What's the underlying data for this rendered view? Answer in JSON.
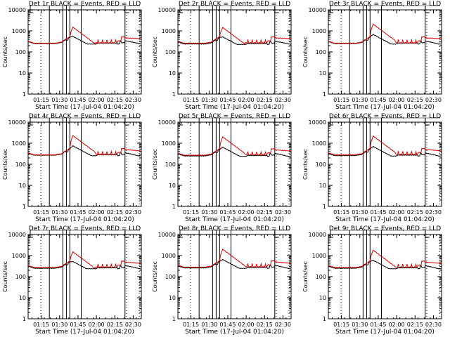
{
  "chart_data": {
    "type": "line",
    "layout": "3x3 grid",
    "y_scale": "log",
    "ylim": [
      1,
      10000
    ],
    "yticks": [
      "1",
      "10",
      "100",
      "1000",
      "10000"
    ],
    "ylabel": "Counts/sec",
    "xlabel": "Start Time (17-Jul-04 01:04:20)",
    "xlim_minutes_from_start": [
      0,
      92.3
    ],
    "xticks": [
      {
        "label": "01:15",
        "minutes": 10.67
      },
      {
        "label": "01:30",
        "minutes": 25.67
      },
      {
        "label": "01:45",
        "minutes": 40.67
      },
      {
        "label": "02:00",
        "minutes": 55.67
      },
      {
        "label": "02:15",
        "minutes": 70.67
      },
      {
        "label": "02:30",
        "minutes": 85.67
      }
    ],
    "markers": {
      "solid_minutes": [
        17.3,
        28.3,
        31.2,
        34.0,
        43.3,
        79.0
      ],
      "dotted_minutes": [
        10.4,
        80.2,
        90.6
      ]
    },
    "panels": [
      {
        "title": "Det 1r BLACK = Events, RED = LLD",
        "peak_red": 1500,
        "peak_black": 550,
        "base_red": 260,
        "base_black": 250,
        "tail_red": 420,
        "tail_black": 230
      },
      {
        "title": "Det 2r BLACK = Events, RED = LLD",
        "peak_red": 1450,
        "peak_black": 520,
        "base_red": 260,
        "base_black": 240,
        "tail_red": 420,
        "tail_black": 220
      },
      {
        "title": "Det 3r BLACK = Events, RED = LLD",
        "peak_red": 2100,
        "peak_black": 680,
        "base_red": 260,
        "base_black": 250,
        "tail_red": 420,
        "tail_black": 210
      },
      {
        "title": "Det 4r BLACK = Events, RED = LLD",
        "peak_red": 2300,
        "peak_black": 750,
        "base_red": 280,
        "base_black": 270,
        "tail_red": 420,
        "tail_black": 220
      },
      {
        "title": "Det 5r BLACK = Events, RED = LLD",
        "peak_red": 2000,
        "peak_black": 650,
        "base_red": 270,
        "base_black": 250,
        "tail_red": 420,
        "tail_black": 210
      },
      {
        "title": "Det 6r BLACK = Events, RED = LLD",
        "peak_red": 2200,
        "peak_black": 700,
        "base_red": 280,
        "base_black": 260,
        "tail_red": 430,
        "tail_black": 220
      },
      {
        "title": "Det 7r BLACK = Events, RED = LLD",
        "peak_red": 1500,
        "peak_black": 520,
        "base_red": 270,
        "base_black": 250,
        "tail_red": 420,
        "tail_black": 220
      },
      {
        "title": "Det 8r BLACK = Events, RED = LLD",
        "peak_red": 2000,
        "peak_black": 650,
        "base_red": 280,
        "base_black": 260,
        "tail_red": 420,
        "tail_black": 220
      },
      {
        "title": "Det 9r BLACK = Events, RED = LLD",
        "peak_red": 1800,
        "peak_black": 600,
        "base_red": 270,
        "base_black": 250,
        "tail_red": 420,
        "tail_black": 210
      }
    ],
    "series": [
      {
        "name": "Events",
        "color": "#000000"
      },
      {
        "name": "LLD",
        "color": "#e00000"
      }
    ]
  }
}
